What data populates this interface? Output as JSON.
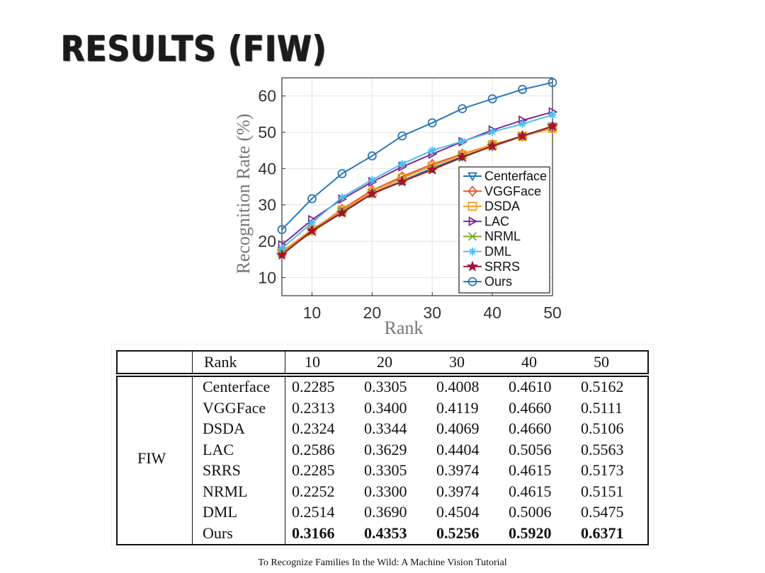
{
  "slide": {
    "title": "RESULTS (FIW)",
    "caption": "To Recognize Families In the Wild: A Machine Vision Tutorial"
  },
  "chart_data": {
    "type": "line",
    "xlabel": "Rank",
    "ylabel": "Recognition Rate (%)",
    "xlim": [
      5,
      50
    ],
    "ylim": [
      5,
      65
    ],
    "xticks": [
      10,
      20,
      30,
      40,
      50
    ],
    "yticks": [
      10,
      20,
      30,
      40,
      50,
      60
    ],
    "grid": true,
    "legend_position": "bottom-right",
    "x": [
      5,
      10,
      15,
      20,
      25,
      30,
      35,
      40,
      45,
      50
    ],
    "series": [
      {
        "name": "Centerface",
        "color": "#1f77b4",
        "marker": "triangle-down",
        "values": [
          16.5,
          22.9,
          28.2,
          33.1,
          36.7,
          40.1,
          43.3,
          46.1,
          48.9,
          51.6
        ]
      },
      {
        "name": "VGGFace",
        "color": "#e4572e",
        "marker": "diamond",
        "values": [
          17.0,
          23.1,
          28.8,
          34.0,
          37.8,
          41.2,
          44.0,
          46.6,
          48.9,
          51.1
        ]
      },
      {
        "name": "DSDA",
        "color": "#f0a020",
        "marker": "square",
        "values": [
          17.2,
          23.2,
          28.6,
          33.4,
          37.4,
          40.7,
          43.8,
          46.6,
          48.9,
          51.1
        ]
      },
      {
        "name": "LAC",
        "color": "#7b2d8e",
        "marker": "triangle-right",
        "values": [
          19.0,
          25.9,
          31.6,
          36.3,
          40.5,
          44.0,
          47.4,
          50.6,
          53.3,
          55.6
        ]
      },
      {
        "name": "NRML",
        "color": "#77ac30",
        "marker": "x",
        "values": [
          16.7,
          22.5,
          28.0,
          33.0,
          36.6,
          39.7,
          43.0,
          46.2,
          48.9,
          51.5
        ]
      },
      {
        "name": "DML",
        "color": "#4dbeee",
        "marker": "star",
        "values": [
          18.0,
          25.1,
          32.1,
          36.9,
          41.3,
          45.0,
          47.5,
          50.1,
          52.3,
          54.8
        ]
      },
      {
        "name": "SRRS",
        "color": "#a2142f",
        "marker": "pentagram",
        "values": [
          16.2,
          22.9,
          27.8,
          33.1,
          36.4,
          39.7,
          43.2,
          46.2,
          49.0,
          51.7
        ]
      },
      {
        "name": "Ours",
        "color": "#2a78b8",
        "marker": "circle",
        "values": [
          23.2,
          31.7,
          38.6,
          43.5,
          49.0,
          52.6,
          56.5,
          59.2,
          61.8,
          63.7
        ]
      }
    ]
  },
  "table": {
    "header": [
      "Rank",
      "10",
      "20",
      "30",
      "40",
      "50"
    ],
    "group_label": "FIW",
    "rows": [
      {
        "method": "Centerface",
        "v": [
          "0.2285",
          "0.3305",
          "0.4008",
          "0.4610",
          "0.5162"
        ]
      },
      {
        "method": "VGGFace",
        "v": [
          "0.2313",
          "0.3400",
          "0.4119",
          "0.4660",
          "0.5111"
        ]
      },
      {
        "method": "DSDA",
        "v": [
          "0.2324",
          "0.3344",
          "0.4069",
          "0.4660",
          "0.5106"
        ]
      },
      {
        "method": "LAC",
        "v": [
          "0.2586",
          "0.3629",
          "0.4404",
          "0.5056",
          "0.5563"
        ]
      },
      {
        "method": "SRRS",
        "v": [
          "0.2285",
          "0.3305",
          "0.3974",
          "0.4615",
          "0.5173"
        ]
      },
      {
        "method": "NRML",
        "v": [
          "0.2252",
          "0.3300",
          "0.3974",
          "0.4615",
          "0.5151"
        ]
      },
      {
        "method": "DML",
        "v": [
          "0.2514",
          "0.3690",
          "0.4504",
          "0.5006",
          "0.5475"
        ]
      },
      {
        "method": "Ours",
        "v": [
          "0.3166",
          "0.4353",
          "0.5256",
          "0.5920",
          "0.6371"
        ]
      }
    ]
  }
}
